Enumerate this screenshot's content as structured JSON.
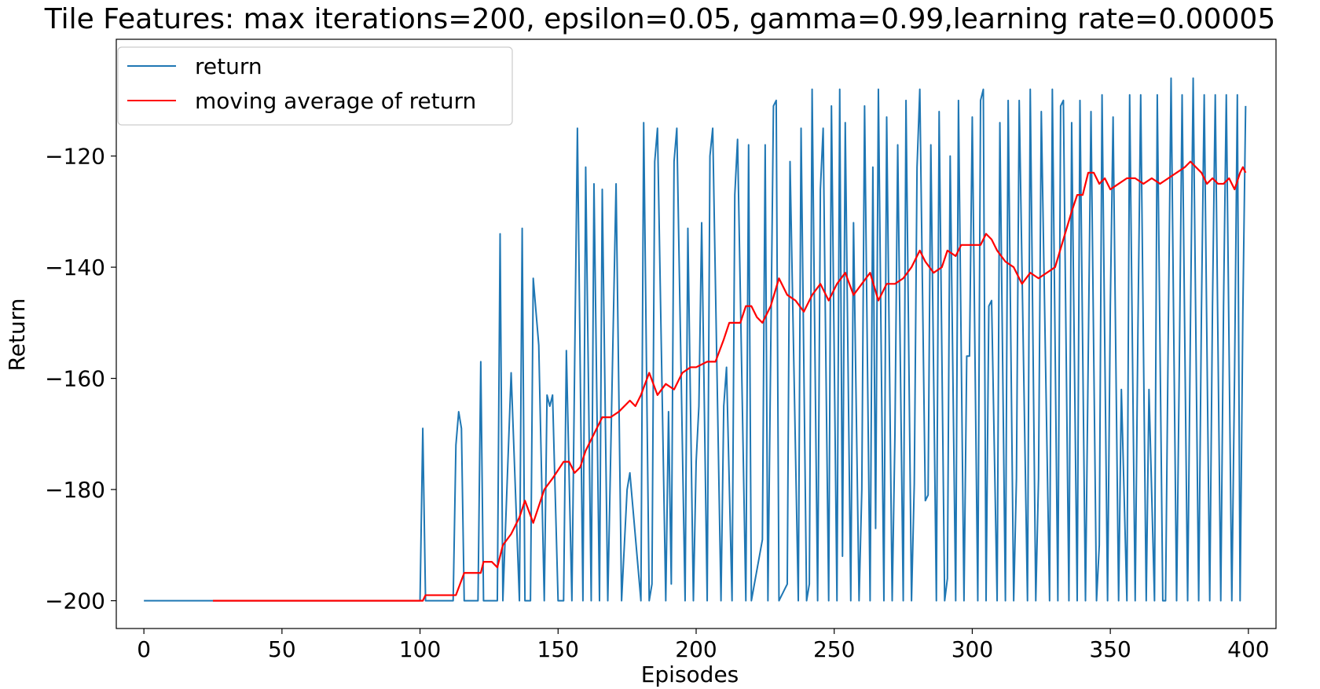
{
  "chart_data": {
    "type": "line",
    "title": "Tile Features: max iterations=200, epsilon=0.05, gamma=0.99,learning rate=0.00005",
    "xlabel": "Episodes",
    "ylabel": "Return",
    "xlim": [
      -10,
      410
    ],
    "ylim": [
      -205,
      -99
    ],
    "xticks": [
      0,
      50,
      100,
      150,
      200,
      250,
      300,
      350,
      400
    ],
    "yticks": [
      -200,
      -180,
      -160,
      -140,
      -120
    ],
    "ytick_labels": [
      "−200",
      "−180",
      "−160",
      "−140",
      "−120"
    ],
    "grid": false,
    "legend_position": "top-left",
    "series": [
      {
        "name": "return",
        "color": "#1f77b4",
        "anchors": [
          [
            0,
            -200
          ],
          [
            100,
            -200
          ],
          [
            101,
            -169
          ],
          [
            102,
            -200
          ],
          [
            112,
            -200
          ],
          [
            113,
            -172
          ],
          [
            114,
            -166
          ],
          [
            115,
            -169
          ],
          [
            116,
            -200
          ],
          [
            121,
            -200
          ],
          [
            122,
            -157
          ],
          [
            123,
            -200
          ],
          [
            128,
            -200
          ],
          [
            129,
            -134
          ],
          [
            130,
            -200
          ],
          [
            133,
            -159
          ],
          [
            136,
            -200
          ],
          [
            137,
            -133
          ],
          [
            138,
            -200
          ],
          [
            140,
            -200
          ],
          [
            141,
            -142
          ],
          [
            143,
            -154
          ],
          [
            145,
            -200
          ],
          [
            146,
            -163
          ],
          [
            147,
            -165
          ],
          [
            148,
            -163
          ],
          [
            150,
            -200
          ],
          [
            152,
            -200
          ],
          [
            153,
            -155
          ],
          [
            155,
            -200
          ],
          [
            157,
            -115
          ],
          [
            159,
            -200
          ],
          [
            160,
            -122
          ],
          [
            162,
            -200
          ],
          [
            163,
            -125
          ],
          [
            165,
            -200
          ],
          [
            166,
            -126
          ],
          [
            168,
            -200
          ],
          [
            171,
            -125
          ],
          [
            173,
            -200
          ],
          [
            175,
            -180
          ],
          [
            176,
            -177
          ],
          [
            180,
            -200
          ],
          [
            181,
            -114
          ],
          [
            183,
            -200
          ],
          [
            184,
            -197
          ],
          [
            185,
            -121
          ],
          [
            186,
            -115
          ],
          [
            189,
            -200
          ],
          [
            190,
            -166
          ],
          [
            191,
            -197
          ],
          [
            192,
            -121
          ],
          [
            193,
            -115
          ],
          [
            196,
            -200
          ],
          [
            197,
            -133
          ],
          [
            199,
            -200
          ],
          [
            200,
            -175
          ],
          [
            201,
            -165
          ],
          [
            202,
            -132
          ],
          [
            204,
            -200
          ],
          [
            205,
            -120
          ],
          [
            206,
            -115
          ],
          [
            209,
            -200
          ],
          [
            210,
            -165
          ],
          [
            211,
            -158
          ],
          [
            213,
            -200
          ],
          [
            214,
            -127
          ],
          [
            215,
            -117
          ],
          [
            218,
            -200
          ],
          [
            219,
            -118
          ],
          [
            220,
            -200
          ],
          [
            224,
            -189
          ],
          [
            225,
            -118
          ],
          [
            226,
            -200
          ],
          [
            228,
            -111
          ],
          [
            229,
            -110
          ],
          [
            230,
            -200
          ],
          [
            233,
            -197
          ],
          [
            234,
            -121
          ],
          [
            237,
            -200
          ],
          [
            238,
            -115
          ],
          [
            240,
            -200
          ],
          [
            241,
            -197
          ],
          [
            242,
            -108
          ],
          [
            244,
            -200
          ],
          [
            245,
            -126
          ],
          [
            246,
            -115
          ],
          [
            248,
            -200
          ],
          [
            249,
            -111
          ],
          [
            251,
            -200
          ],
          [
            252,
            -108
          ],
          [
            253,
            -192
          ],
          [
            254,
            -114
          ],
          [
            256,
            -200
          ],
          [
            257,
            -132
          ],
          [
            259,
            -200
          ],
          [
            260,
            -180
          ],
          [
            261,
            -111
          ],
          [
            263,
            -200
          ],
          [
            264,
            -122
          ],
          [
            265,
            -187
          ],
          [
            266,
            -108
          ],
          [
            268,
            -200
          ],
          [
            269,
            -113
          ],
          [
            271,
            -200
          ],
          [
            272,
            -170
          ],
          [
            273,
            -118
          ],
          [
            275,
            -200
          ],
          [
            276,
            -110
          ],
          [
            278,
            -200
          ],
          [
            279,
            -179
          ],
          [
            280,
            -122
          ],
          [
            281,
            -108
          ],
          [
            283,
            -182
          ],
          [
            284,
            -181
          ],
          [
            285,
            -118
          ],
          [
            287,
            -200
          ],
          [
            288,
            -112
          ],
          [
            290,
            -200
          ],
          [
            291,
            -196
          ],
          [
            292,
            -120
          ],
          [
            294,
            -200
          ],
          [
            295,
            -110
          ],
          [
            297,
            -200
          ],
          [
            298,
            -156
          ],
          [
            299,
            -156
          ],
          [
            300,
            -113
          ],
          [
            302,
            -200
          ],
          [
            303,
            -110
          ],
          [
            304,
            -108
          ],
          [
            305,
            -200
          ],
          [
            306,
            -147
          ],
          [
            307,
            -146
          ],
          [
            309,
            -200
          ],
          [
            310,
            -114
          ],
          [
            312,
            -200
          ],
          [
            313,
            -110
          ],
          [
            315,
            -200
          ],
          [
            316,
            -178
          ],
          [
            317,
            -110
          ],
          [
            320,
            -200
          ],
          [
            321,
            -108
          ],
          [
            323,
            -200
          ],
          [
            324,
            -178
          ],
          [
            325,
            -112
          ],
          [
            328,
            -200
          ],
          [
            329,
            -108
          ],
          [
            331,
            -200
          ],
          [
            332,
            -111
          ],
          [
            333,
            -110
          ],
          [
            335,
            -200
          ],
          [
            336,
            -114
          ],
          [
            338,
            -200
          ],
          [
            339,
            -110
          ],
          [
            341,
            -200
          ],
          [
            342,
            -156
          ],
          [
            343,
            -112
          ],
          [
            345,
            -200
          ],
          [
            346,
            -190
          ],
          [
            347,
            -109
          ],
          [
            349,
            -200
          ],
          [
            350,
            -147
          ],
          [
            351,
            -113
          ],
          [
            353,
            -200
          ],
          [
            354,
            -162
          ],
          [
            356,
            -200
          ],
          [
            357,
            -109
          ],
          [
            359,
            -200
          ],
          [
            360,
            -151
          ],
          [
            361,
            -109
          ],
          [
            363,
            -200
          ],
          [
            364,
            -162
          ],
          [
            366,
            -200
          ],
          [
            367,
            -109
          ],
          [
            369,
            -200
          ],
          [
            370,
            -200
          ],
          [
            371,
            -151
          ],
          [
            372,
            -106
          ],
          [
            374,
            -200
          ],
          [
            375,
            -157
          ],
          [
            376,
            -109
          ],
          [
            378,
            -200
          ],
          [
            379,
            -151
          ],
          [
            380,
            -106
          ],
          [
            382,
            -200
          ],
          [
            383,
            -148
          ],
          [
            384,
            -109
          ],
          [
            386,
            -200
          ],
          [
            387,
            -147
          ],
          [
            388,
            -109
          ],
          [
            390,
            -200
          ],
          [
            391,
            -147
          ],
          [
            392,
            -109
          ],
          [
            394,
            -200
          ],
          [
            395,
            -159
          ],
          [
            396,
            -109
          ],
          [
            397,
            -200
          ],
          [
            398,
            -148
          ],
          [
            399,
            -111
          ]
        ]
      },
      {
        "name": "moving average of return",
        "color": "#ff0000",
        "points": [
          [
            25,
            -200
          ],
          [
            101,
            -200
          ],
          [
            102,
            -199
          ],
          [
            113,
            -199
          ],
          [
            116,
            -195
          ],
          [
            122,
            -195
          ],
          [
            123,
            -193
          ],
          [
            126,
            -193
          ],
          [
            128,
            -194
          ],
          [
            130,
            -190
          ],
          [
            133,
            -188
          ],
          [
            136,
            -185
          ],
          [
            138,
            -182
          ],
          [
            141,
            -186
          ],
          [
            145,
            -180
          ],
          [
            148,
            -178
          ],
          [
            152,
            -175
          ],
          [
            154,
            -175
          ],
          [
            156,
            -177
          ],
          [
            158,
            -176
          ],
          [
            160,
            -173
          ],
          [
            163,
            -170
          ],
          [
            166,
            -167
          ],
          [
            169,
            -167
          ],
          [
            172,
            -166
          ],
          [
            176,
            -164
          ],
          [
            178,
            -165
          ],
          [
            180,
            -163
          ],
          [
            183,
            -159
          ],
          [
            186,
            -163
          ],
          [
            189,
            -161
          ],
          [
            192,
            -162
          ],
          [
            195,
            -159
          ],
          [
            198,
            -158
          ],
          [
            200,
            -158
          ],
          [
            204,
            -157
          ],
          [
            207,
            -157
          ],
          [
            210,
            -153
          ],
          [
            212,
            -150
          ],
          [
            216,
            -150
          ],
          [
            218,
            -147
          ],
          [
            220,
            -147
          ],
          [
            222,
            -149
          ],
          [
            224,
            -150
          ],
          [
            227,
            -147
          ],
          [
            230,
            -142
          ],
          [
            233,
            -145
          ],
          [
            236,
            -146
          ],
          [
            239,
            -148
          ],
          [
            242,
            -145
          ],
          [
            245,
            -143
          ],
          [
            248,
            -146
          ],
          [
            251,
            -143
          ],
          [
            254,
            -141
          ],
          [
            257,
            -145
          ],
          [
            260,
            -143
          ],
          [
            263,
            -141
          ],
          [
            266,
            -146
          ],
          [
            269,
            -143
          ],
          [
            272,
            -143
          ],
          [
            275,
            -142
          ],
          [
            278,
            -140
          ],
          [
            281,
            -137
          ],
          [
            283,
            -139
          ],
          [
            286,
            -141
          ],
          [
            289,
            -140
          ],
          [
            291,
            -137
          ],
          [
            294,
            -138
          ],
          [
            296,
            -136
          ],
          [
            299,
            -136
          ],
          [
            301,
            -136
          ],
          [
            303,
            -136
          ],
          [
            305,
            -134
          ],
          [
            307,
            -135
          ],
          [
            309,
            -137
          ],
          [
            312,
            -139
          ],
          [
            315,
            -140
          ],
          [
            318,
            -143
          ],
          [
            321,
            -141
          ],
          [
            324,
            -142
          ],
          [
            327,
            -141
          ],
          [
            330,
            -140
          ],
          [
            333,
            -135
          ],
          [
            336,
            -130
          ],
          [
            338,
            -127
          ],
          [
            340,
            -127
          ],
          [
            342,
            -123
          ],
          [
            344,
            -123
          ],
          [
            346,
            -125
          ],
          [
            348,
            -124
          ],
          [
            350,
            -126
          ],
          [
            353,
            -125
          ],
          [
            356,
            -124
          ],
          [
            359,
            -124
          ],
          [
            362,
            -125
          ],
          [
            365,
            -124
          ],
          [
            368,
            -125
          ],
          [
            371,
            -124
          ],
          [
            374,
            -123
          ],
          [
            377,
            -122
          ],
          [
            379,
            -121
          ],
          [
            381,
            -122
          ],
          [
            383,
            -123
          ],
          [
            385,
            -125
          ],
          [
            387,
            -124
          ],
          [
            389,
            -125
          ],
          [
            391,
            -125
          ],
          [
            393,
            -124
          ],
          [
            395,
            -126
          ],
          [
            397,
            -123
          ],
          [
            398,
            -122
          ],
          [
            399,
            -123
          ]
        ]
      }
    ]
  }
}
